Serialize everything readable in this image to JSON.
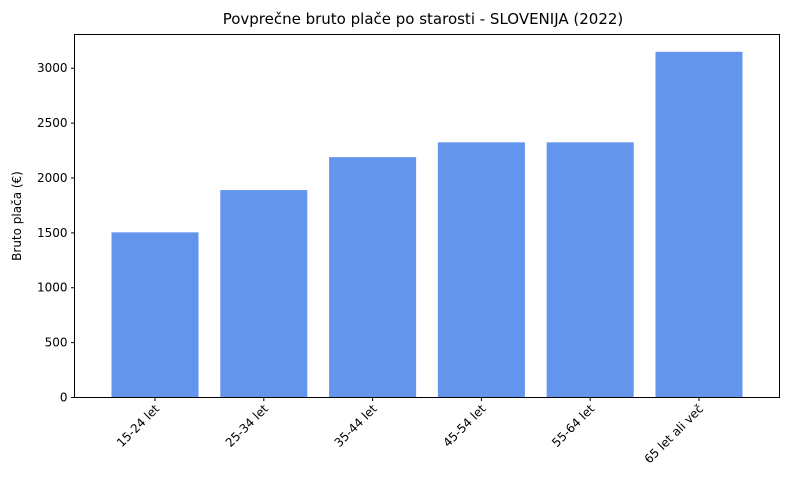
{
  "chart_data": {
    "type": "bar",
    "title": "Povprečne bruto plače po starosti - SLOVENIJA (2022)",
    "xlabel": "",
    "ylabel": "Bruto plača (€)",
    "categories": [
      "15-24 let",
      "25-34 let",
      "35-44 let",
      "45-54 let",
      "55-64 let",
      "65 let ali več"
    ],
    "values": [
      1505,
      1890,
      2190,
      2325,
      2325,
      3150
    ],
    "ylim": [
      0,
      3307.5
    ],
    "yticks": [
      0,
      500,
      1000,
      1500,
      2000,
      2500,
      3000
    ],
    "bar_color": "#6495ED",
    "grid": false,
    "x_tick_rotation": 45
  }
}
